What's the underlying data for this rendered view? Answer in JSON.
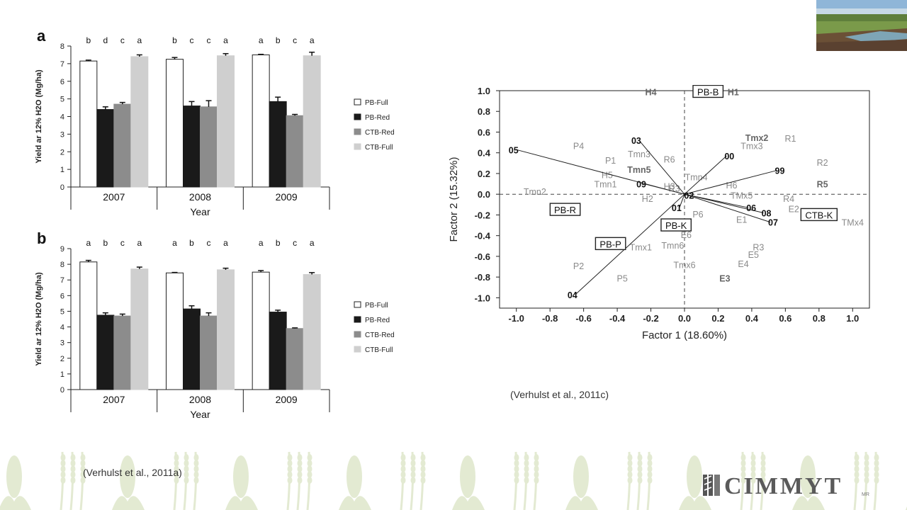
{
  "captions": {
    "left": "(Verhulst et al., 2011a)",
    "right": "(Verhulst et al., 2011c)"
  },
  "logo": {
    "text": "CIMMYT",
    "suffix": "MR"
  },
  "colors": {
    "PB-Full": "#ffffff",
    "PB-Red": "#1a1a1a",
    "CTB-Red": "#8c8c8c",
    "CTB-Full": "#cfcfcf",
    "decor": "#e3ead2"
  },
  "chart_data": [
    {
      "type": "bar",
      "panel_label": "a",
      "categories": [
        "2007",
        "2008",
        "2009"
      ],
      "xlabel": "Year",
      "ylabel": "Yield ar 12% H2O (Mg/ha)",
      "ylim": [
        0,
        8
      ],
      "yticks": [
        "0",
        "1",
        "2",
        "3",
        "4",
        "5",
        "6",
        "7",
        "8"
      ],
      "legend": [
        "PB-Full",
        "PB-Red",
        "CTB-Red",
        "CTB-Full"
      ],
      "legend_position": "right",
      "series": [
        {
          "name": "PB-Full",
          "values": [
            7.15,
            7.25,
            7.5
          ],
          "errors": [
            0.05,
            0.1,
            0.03
          ]
        },
        {
          "name": "PB-Red",
          "values": [
            4.4,
            4.6,
            4.85
          ],
          "errors": [
            0.15,
            0.25,
            0.25
          ]
        },
        {
          "name": "CTB-Red",
          "values": [
            4.7,
            4.55,
            4.05
          ],
          "errors": [
            0.1,
            0.35,
            0.07
          ]
        },
        {
          "name": "CTB-Full",
          "values": [
            7.4,
            7.45,
            7.45
          ],
          "errors": [
            0.1,
            0.12,
            0.2
          ]
        }
      ],
      "letters": [
        [
          "b",
          "d",
          "c",
          "a"
        ],
        [
          "b",
          "c",
          "c",
          "a"
        ],
        [
          "a",
          "b",
          "c",
          "a"
        ]
      ]
    },
    {
      "type": "bar",
      "panel_label": "b",
      "categories": [
        "2007",
        "2008",
        "2009"
      ],
      "xlabel": "Year",
      "ylabel": "Yield ar 12% H2O (Mg/ha)",
      "ylim": [
        0,
        9
      ],
      "yticks": [
        "0",
        "1",
        "2",
        "3",
        "4",
        "5",
        "6",
        "7",
        "8",
        "9"
      ],
      "legend": [
        "PB-Full",
        "PB-Red",
        "CTB-Red",
        "CTB-Full"
      ],
      "legend_position": "right",
      "series": [
        {
          "name": "PB-Full",
          "values": [
            8.15,
            7.45,
            7.5
          ],
          "errors": [
            0.1,
            0.03,
            0.1
          ]
        },
        {
          "name": "PB-Red",
          "values": [
            4.75,
            5.15,
            4.95
          ],
          "errors": [
            0.15,
            0.2,
            0.12
          ]
        },
        {
          "name": "CTB-Red",
          "values": [
            4.7,
            4.7,
            3.9
          ],
          "errors": [
            0.12,
            0.2,
            0.04
          ]
        },
        {
          "name": "CTB-Full",
          "values": [
            7.7,
            7.65,
            7.35
          ],
          "errors": [
            0.12,
            0.1,
            0.12
          ]
        }
      ],
      "letters": [
        [
          "a",
          "b",
          "c",
          "a"
        ],
        [
          "a",
          "b",
          "c",
          "a"
        ],
        [
          "a",
          "b",
          "c",
          "a"
        ]
      ]
    },
    {
      "type": "scatter",
      "xlabel": "Factor 1 (18.60%)",
      "ylabel": "Factor 2 (15.32%)",
      "xlim": [
        -1.1,
        1.1
      ],
      "ylim": [
        -1.1,
        1.0
      ],
      "xticks": [
        "-1.0",
        "-0.8",
        "-0.6",
        "-0.4",
        "-0.2",
        "0.0",
        "0.2",
        "0.4",
        "0.6",
        "0.8",
        "1.0"
      ],
      "yticks": [
        "1.0",
        "0.8",
        "0.6",
        "0.4",
        "0.2",
        "0.0",
        "-0.2",
        "-0.4",
        "-0.6",
        "-0.8",
        "-1.0"
      ],
      "vectors": [
        {
          "label": "05",
          "x": -1.0,
          "y": 0.43
        },
        {
          "label": "03",
          "x": -0.27,
          "y": 0.52
        },
        {
          "label": "00",
          "x": 0.25,
          "y": 0.37
        },
        {
          "label": "99",
          "x": 0.55,
          "y": 0.23
        },
        {
          "label": "09",
          "x": -0.24,
          "y": 0.1
        },
        {
          "label": "02",
          "x": 0.01,
          "y": -0.01
        },
        {
          "label": "01",
          "x": -0.03,
          "y": -0.13
        },
        {
          "label": "06",
          "x": 0.38,
          "y": -0.13
        },
        {
          "label": "08",
          "x": 0.47,
          "y": -0.18
        },
        {
          "label": "07",
          "x": 0.51,
          "y": -0.27
        },
        {
          "label": "04",
          "x": -0.65,
          "y": -0.97
        }
      ],
      "boxed": [
        {
          "label": "PB-B",
          "x": 0.14,
          "y": 0.99
        },
        {
          "label": "PB-R",
          "x": -0.71,
          "y": -0.15
        },
        {
          "label": "CTB-K",
          "x": 0.8,
          "y": -0.2
        },
        {
          "label": "PB-K",
          "x": -0.05,
          "y": -0.3
        },
        {
          "label": "PB-P",
          "x": -0.44,
          "y": -0.48
        }
      ],
      "points": [
        {
          "label": "H4",
          "x": -0.2,
          "y": 0.99,
          "bold": true
        },
        {
          "label": "H1",
          "x": 0.29,
          "y": 0.99,
          "bold": true
        },
        {
          "label": "Tmx2",
          "x": 0.43,
          "y": 0.55,
          "bold": true
        },
        {
          "label": "Tmx3",
          "x": 0.4,
          "y": 0.47,
          "bold": false
        },
        {
          "label": "R1",
          "x": 0.63,
          "y": 0.54,
          "bold": false
        },
        {
          "label": "P4",
          "x": -0.63,
          "y": 0.47,
          "bold": false
        },
        {
          "label": "Tmn3",
          "x": -0.27,
          "y": 0.39,
          "bold": false
        },
        {
          "label": "P1",
          "x": -0.44,
          "y": 0.33,
          "bold": false
        },
        {
          "label": "R6",
          "x": -0.09,
          "y": 0.34,
          "bold": false
        },
        {
          "label": "R2",
          "x": 0.82,
          "y": 0.31,
          "bold": false
        },
        {
          "label": "Tmn5",
          "x": -0.27,
          "y": 0.24,
          "bold": true
        },
        {
          "label": "H5",
          "x": -0.46,
          "y": 0.19,
          "bold": false
        },
        {
          "label": "Tmn4",
          "x": 0.07,
          "y": 0.17,
          "bold": false
        },
        {
          "label": "Tmn1",
          "x": -0.47,
          "y": 0.1,
          "bold": false
        },
        {
          "label": "H3",
          "x": -0.09,
          "y": 0.08,
          "bold": false
        },
        {
          "label": "R3",
          "x": -0.06,
          "y": 0.06,
          "bold": false
        },
        {
          "label": "H6",
          "x": 0.28,
          "y": 0.09,
          "bold": false
        },
        {
          "label": "R5",
          "x": 0.82,
          "y": 0.1,
          "bold": true
        },
        {
          "label": "Tmn2",
          "x": -0.89,
          "y": 0.03,
          "bold": false
        },
        {
          "label": "H2",
          "x": -0.22,
          "y": -0.04,
          "bold": false
        },
        {
          "label": "TMx5",
          "x": 0.34,
          "y": -0.01,
          "bold": false
        },
        {
          "label": "R4",
          "x": 0.62,
          "y": -0.04,
          "bold": false
        },
        {
          "label": "E2",
          "x": 0.65,
          "y": -0.14,
          "bold": false
        },
        {
          "label": "P6",
          "x": 0.08,
          "y": -0.19,
          "bold": false
        },
        {
          "label": "E1",
          "x": 0.34,
          "y": -0.24,
          "bold": false
        },
        {
          "label": "TMx4",
          "x": 1.0,
          "y": -0.27,
          "bold": false
        },
        {
          "label": "E6",
          "x": 0.01,
          "y": -0.39,
          "bold": false
        },
        {
          "label": "Tmx1",
          "x": -0.26,
          "y": -0.51,
          "bold": false
        },
        {
          "label": "Tmn6",
          "x": -0.07,
          "y": -0.49,
          "bold": false
        },
        {
          "label": "R3",
          "x": 0.44,
          "y": -0.51,
          "bold": false
        },
        {
          "label": "E5",
          "x": 0.41,
          "y": -0.58,
          "bold": false
        },
        {
          "label": "E4",
          "x": 0.35,
          "y": -0.67,
          "bold": false
        },
        {
          "label": "P2",
          "x": -0.63,
          "y": -0.69,
          "bold": false
        },
        {
          "label": "Tmx6",
          "x": 0.0,
          "y": -0.68,
          "bold": false
        },
        {
          "label": "P5",
          "x": -0.37,
          "y": -0.81,
          "bold": false
        },
        {
          "label": "E3",
          "x": 0.24,
          "y": -0.81,
          "bold": true
        }
      ]
    }
  ]
}
